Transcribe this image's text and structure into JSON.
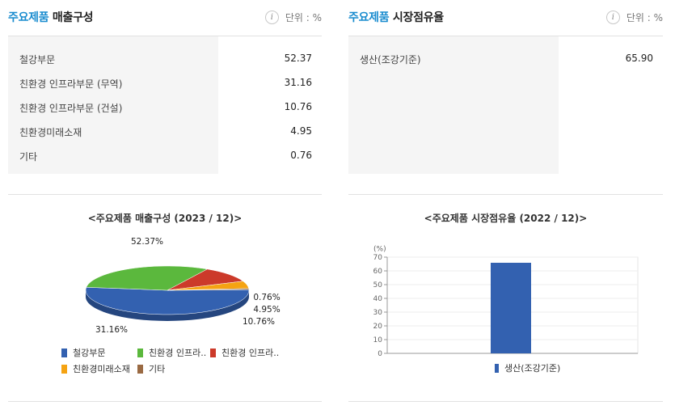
{
  "left_panel": {
    "title_accent": "주요제품",
    "title_rest": "매출구성",
    "unit": "단위 : %",
    "rows": [
      {
        "label": "철강부문",
        "value": "52.37"
      },
      {
        "label": "친환경 인프라부문 (무역)",
        "value": "31.16"
      },
      {
        "label": "친환경 인프라부문 (건설)",
        "value": "10.76"
      },
      {
        "label": "친환경미래소재",
        "value": "4.95"
      },
      {
        "label": "기타",
        "value": "0.76"
      }
    ]
  },
  "right_panel": {
    "title_accent": "주요제품",
    "title_rest": "시장점유율",
    "unit": "단위 : %",
    "rows": [
      {
        "label": "생산(조강기준)",
        "value": "65.90"
      }
    ]
  },
  "chart_data": [
    {
      "type": "pie",
      "title": "<주요제품 매출구성 (2023 / 12)>",
      "categories": [
        "철강부문",
        "친환경 인프라..",
        "친환경 인프라..",
        "친환경미래소재",
        "기타"
      ],
      "values": [
        52.37,
        31.16,
        10.76,
        4.95,
        0.76
      ],
      "data_labels": [
        "52.37%",
        "31.16%",
        "10.76%",
        "4.95%",
        "0.76%"
      ],
      "colors": [
        "#3361b0",
        "#5bb83d",
        "#cc3a2a",
        "#f5a312",
        "#9a6a43"
      ],
      "legend_placement": "bottom"
    },
    {
      "type": "bar",
      "title": "<주요제품 시장점유율 (2022 / 12)>",
      "categories": [
        "생산(조강기준)"
      ],
      "values": [
        65.9
      ],
      "ylabel": "(%)",
      "ylim": [
        0,
        70
      ],
      "yticks": [
        0,
        10,
        20,
        30,
        40,
        50,
        60,
        70
      ],
      "grid": true,
      "legend": [
        "생산(조강기준)"
      ],
      "colors": [
        "#3361b0"
      ],
      "legend_placement": "bottom"
    }
  ]
}
